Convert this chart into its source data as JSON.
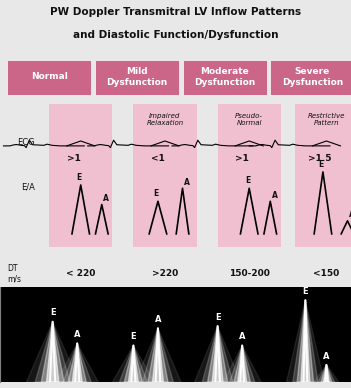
{
  "title_line1": "PW Doppler Transmitral LV Inflow Patterns",
  "title_line2": "and Diastolic Function/Dysfunction",
  "columns": [
    "Normal",
    "Mild\nDysfunction",
    "Moderate\nDysfunction",
    "Severe\nDysfunction"
  ],
  "subtitles": [
    "",
    "Impaired\nRelaxation",
    "Pseudo-\nNormal",
    "Restrictive\nPattern"
  ],
  "ea_ratios": [
    ">1",
    "<1",
    ">1",
    ">1.5"
  ],
  "dt_values": [
    "< 220",
    ">220",
    "150-200",
    "<150"
  ],
  "header_bg": "#cc6688",
  "cell_bg": "#f0c0d0",
  "black_bg": "#000000",
  "white": "#ffffff",
  "pink_connector": "#cc6688",
  "title_color": "#111111",
  "col_label_color": "#ffffff",
  "subtitle_color": "#111111",
  "figsize": [
    3.51,
    3.88
  ],
  "dpi": 100
}
